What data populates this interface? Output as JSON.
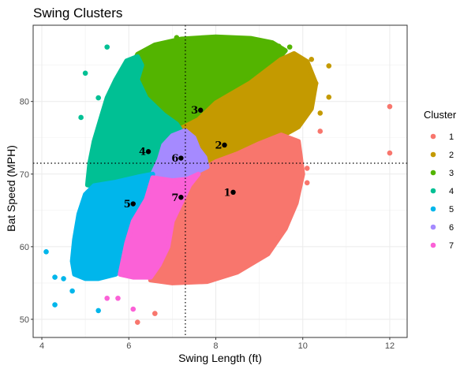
{
  "chart_data": {
    "type": "scatter",
    "title": "Swing Clusters",
    "xlabel": "Swing Length (ft)",
    "ylabel": "Bat Speed (MPH)",
    "xlim": [
      3.8,
      12.4
    ],
    "ylim": [
      47.5,
      90.5
    ],
    "x_ticks": [
      4,
      6,
      8,
      10,
      12
    ],
    "y_ticks": [
      50,
      60,
      70,
      80
    ],
    "grid": true,
    "legend": {
      "title": "Cluster",
      "position": "right",
      "entries": [
        {
          "label": "1",
          "color": "#F8766D"
        },
        {
          "label": "2",
          "color": "#C49A00"
        },
        {
          "label": "3",
          "color": "#53B400"
        },
        {
          "label": "4",
          "color": "#00C094"
        },
        {
          "label": "5",
          "color": "#00B6EB"
        },
        {
          "label": "6",
          "color": "#A58AFF"
        },
        {
          "label": "7",
          "color": "#FB61D7"
        }
      ]
    },
    "reference_lines": {
      "x": 7.3,
      "y": 71.5
    },
    "centers": [
      {
        "cluster": "1",
        "x": 8.4,
        "y": 67.5
      },
      {
        "cluster": "2",
        "x": 8.2,
        "y": 74.0
      },
      {
        "cluster": "3",
        "x": 7.65,
        "y": 78.8
      },
      {
        "cluster": "4",
        "x": 6.45,
        "y": 73.1
      },
      {
        "cluster": "5",
        "x": 6.1,
        "y": 65.9
      },
      {
        "cluster": "6",
        "x": 7.2,
        "y": 72.2
      },
      {
        "cluster": "7",
        "x": 7.2,
        "y": 66.8
      }
    ],
    "outliers": [
      {
        "cluster": "1",
        "x": 12.0,
        "y": 79.3
      },
      {
        "cluster": "1",
        "x": 12.0,
        "y": 72.9
      },
      {
        "cluster": "1",
        "x": 6.2,
        "y": 49.6
      },
      {
        "cluster": "1",
        "x": 6.6,
        "y": 50.8
      },
      {
        "cluster": "1",
        "x": 9.9,
        "y": 73.5
      },
      {
        "cluster": "1",
        "x": 10.1,
        "y": 70.8
      },
      {
        "cluster": "1",
        "x": 10.1,
        "y": 68.8
      },
      {
        "cluster": "1",
        "x": 10.4,
        "y": 75.9
      },
      {
        "cluster": "2",
        "x": 10.6,
        "y": 80.6
      },
      {
        "cluster": "2",
        "x": 10.4,
        "y": 78.4
      },
      {
        "cluster": "2",
        "x": 10.6,
        "y": 84.9
      },
      {
        "cluster": "2",
        "x": 10.2,
        "y": 85.8
      },
      {
        "cluster": "2",
        "x": 10.3,
        "y": 82.5
      },
      {
        "cluster": "3",
        "x": 9.45,
        "y": 87.6
      },
      {
        "cluster": "3",
        "x": 9.7,
        "y": 87.5
      },
      {
        "cluster": "3",
        "x": 7.1,
        "y": 88.8
      },
      {
        "cluster": "4",
        "x": 5.0,
        "y": 83.9
      },
      {
        "cluster": "4",
        "x": 5.5,
        "y": 87.5
      },
      {
        "cluster": "4",
        "x": 5.3,
        "y": 80.5
      },
      {
        "cluster": "4",
        "x": 4.9,
        "y": 77.8
      },
      {
        "cluster": "5",
        "x": 4.3,
        "y": 52.0
      },
      {
        "cluster": "5",
        "x": 4.5,
        "y": 55.6
      },
      {
        "cluster": "5",
        "x": 4.7,
        "y": 53.9
      },
      {
        "cluster": "5",
        "x": 4.1,
        "y": 59.3
      },
      {
        "cluster": "5",
        "x": 5.3,
        "y": 51.2
      },
      {
        "cluster": "5",
        "x": 4.3,
        "y": 55.8
      },
      {
        "cluster": "7",
        "x": 5.5,
        "y": 52.9
      },
      {
        "cluster": "7",
        "x": 5.75,
        "y": 52.9
      },
      {
        "cluster": "7",
        "x": 6.1,
        "y": 51.4
      }
    ]
  }
}
